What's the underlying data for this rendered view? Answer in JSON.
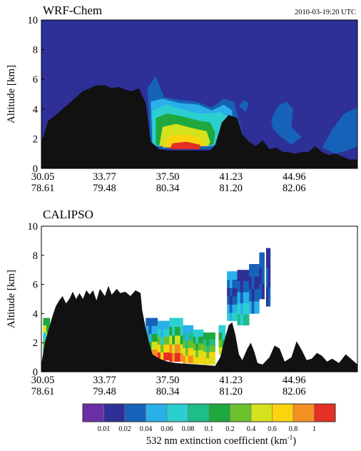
{
  "figure_label": "",
  "chart_data": [
    {
      "type": "heatmap",
      "title": "WRF-Chem",
      "timestamp": "2010-03-19:20 UTC",
      "ylabel": "Altitude [km]",
      "ylim": [
        0,
        10
      ],
      "yticks": [
        "0",
        "2",
        "4",
        "6",
        "8",
        "10"
      ],
      "xtick_labels": [
        {
          "lat": "30.05",
          "lon": "78.61"
        },
        {
          "lat": "33.77",
          "lon": "79.48"
        },
        {
          "lat": "37.50",
          "lon": "80.34"
        },
        {
          "lat": "41.23",
          "lon": "81.20"
        },
        {
          "lat": "44.96",
          "lon": "82.06"
        }
      ],
      "x_range": [
        30.05,
        48.69
      ],
      "background_level": 0.01,
      "terrain_color": "#111111",
      "terrain_km": [
        [
          30.05,
          1.7
        ],
        [
          30.45,
          3.2
        ],
        [
          30.9,
          3.6
        ],
        [
          31.3,
          4.0
        ],
        [
          31.7,
          4.4
        ],
        [
          32.1,
          4.8
        ],
        [
          32.5,
          5.2
        ],
        [
          32.9,
          5.4
        ],
        [
          33.3,
          5.6
        ],
        [
          33.8,
          5.6
        ],
        [
          34.2,
          5.4
        ],
        [
          34.6,
          5.5
        ],
        [
          35.0,
          5.3
        ],
        [
          35.4,
          5.2
        ],
        [
          35.8,
          5.4
        ],
        [
          36.2,
          4.4
        ],
        [
          36.5,
          1.8
        ],
        [
          37.0,
          1.3
        ],
        [
          37.5,
          1.2
        ],
        [
          38.0,
          1.2
        ],
        [
          38.5,
          1.2
        ],
        [
          39.0,
          1.2
        ],
        [
          39.5,
          1.2
        ],
        [
          40.0,
          1.2
        ],
        [
          40.3,
          1.6
        ],
        [
          40.7,
          3.1
        ],
        [
          41.1,
          3.6
        ],
        [
          41.6,
          3.4
        ],
        [
          41.9,
          2.3
        ],
        [
          42.3,
          1.8
        ],
        [
          42.7,
          1.5
        ],
        [
          43.1,
          1.9
        ],
        [
          43.5,
          1.3
        ],
        [
          43.9,
          1.4
        ],
        [
          44.3,
          1.1
        ],
        [
          44.6,
          1.1
        ],
        [
          45.0,
          1.0
        ],
        [
          45.4,
          1.1
        ],
        [
          45.8,
          1.1
        ],
        [
          46.2,
          1.5
        ],
        [
          46.6,
          1.1
        ],
        [
          47.0,
          0.9
        ],
        [
          47.4,
          1.0
        ],
        [
          47.8,
          0.8
        ],
        [
          48.2,
          0.6
        ],
        [
          48.69,
          0.6
        ]
      ],
      "plume_layers": [
        {
          "level": 0.02,
          "points": [
            [
              36.5,
              1.5
            ],
            [
              36.3,
              5.4
            ],
            [
              36.8,
              6.2
            ],
            [
              37.3,
              4.8
            ],
            [
              38.3,
              4.6
            ],
            [
              39.2,
              4.5
            ],
            [
              40.1,
              4.1
            ],
            [
              40.8,
              4.7
            ],
            [
              41.4,
              4.5
            ],
            [
              42.0,
              2.0
            ],
            [
              41.9,
              1.5
            ],
            [
              40.3,
              1.3
            ],
            [
              36.5,
              1.3
            ]
          ]
        },
        {
          "level": 0.04,
          "points": [
            [
              36.6,
              1.5
            ],
            [
              36.5,
              4.5
            ],
            [
              37.2,
              4.7
            ],
            [
              38.2,
              4.4
            ],
            [
              39.3,
              4.3
            ],
            [
              40.1,
              3.9
            ],
            [
              40.8,
              4.3
            ],
            [
              41.3,
              3.9
            ],
            [
              41.3,
              1.5
            ]
          ]
        },
        {
          "level": 0.06,
          "points": [
            [
              36.6,
              1.6
            ],
            [
              36.6,
              3.9
            ],
            [
              37.4,
              4.3
            ],
            [
              38.3,
              4.0
            ],
            [
              39.3,
              3.7
            ],
            [
              40.1,
              3.7
            ],
            [
              40.6,
              3.8
            ],
            [
              41.0,
              3.5
            ],
            [
              41.0,
              1.6
            ]
          ]
        },
        {
          "level": 0.1,
          "points": [
            [
              36.8,
              1.6
            ],
            [
              36.8,
              3.4
            ],
            [
              37.5,
              3.7
            ],
            [
              38.4,
              3.5
            ],
            [
              39.4,
              3.2
            ],
            [
              40.0,
              3.1
            ],
            [
              40.3,
              2.4
            ],
            [
              40.2,
              1.6
            ]
          ]
        },
        {
          "level": 0.4,
          "points": [
            [
              37.0,
              1.5
            ],
            [
              37.2,
              2.8
            ],
            [
              38.0,
              3.0
            ],
            [
              39.0,
              2.7
            ],
            [
              39.8,
              2.5
            ],
            [
              40.0,
              1.8
            ],
            [
              39.9,
              1.5
            ]
          ]
        },
        {
          "level": 0.6,
          "points": [
            [
              37.2,
              1.4
            ],
            [
              37.6,
              2.2
            ],
            [
              38.6,
              2.3
            ],
            [
              39.5,
              2.0
            ],
            [
              39.7,
              1.5
            ]
          ]
        },
        {
          "level": 1,
          "points": [
            [
              37.6,
              1.3
            ],
            [
              37.8,
              1.7
            ],
            [
              38.6,
              1.8
            ],
            [
              39.4,
              1.6
            ],
            [
              39.4,
              1.3
            ]
          ]
        }
      ],
      "secondary_patches": [
        {
          "level": 0.02,
          "points": [
            [
              43.6,
              3.3
            ],
            [
              44.0,
              4.2
            ],
            [
              44.5,
              4.5
            ],
            [
              44.9,
              4.0
            ],
            [
              44.8,
              2.8
            ],
            [
              45.4,
              2.1
            ],
            [
              44.8,
              1.6
            ],
            [
              44.1,
              2.2
            ],
            [
              43.7,
              2.7
            ]
          ]
        },
        {
          "level": 0.02,
          "points": [
            [
              46.6,
              1.4
            ],
            [
              47.2,
              2.6
            ],
            [
              47.9,
              3.7
            ],
            [
              48.69,
              4.1
            ],
            [
              48.69,
              1.5
            ],
            [
              48.1,
              1.2
            ],
            [
              47.4,
              1.0
            ]
          ]
        },
        {
          "level": 0.02,
          "points": [
            [
              41.7,
              4.2
            ],
            [
              42.0,
              4.6
            ],
            [
              42.3,
              4.4
            ],
            [
              42.1,
              3.8
            ]
          ]
        }
      ]
    },
    {
      "type": "heatmap",
      "title": "CALIPSO",
      "ylabel": "Altitude [km]",
      "ylim": [
        0,
        10
      ],
      "yticks": [
        "0",
        "2",
        "4",
        "6",
        "8",
        "10"
      ],
      "xtick_labels": [
        {
          "lat": "30.05",
          "lon": "78.61"
        },
        {
          "lat": "33.77",
          "lon": "79.48"
        },
        {
          "lat": "37.50",
          "lon": "80.34"
        },
        {
          "lat": "41.23",
          "lon": "81.20"
        },
        {
          "lat": "44.96",
          "lon": "82.06"
        }
      ],
      "x_range": [
        30.05,
        48.69
      ],
      "background_level": "none",
      "terrain_color": "#111111",
      "terrain_km": [
        [
          30.05,
          0.5
        ],
        [
          30.25,
          2.0
        ],
        [
          30.5,
          3.0
        ],
        [
          30.7,
          3.8
        ],
        [
          30.9,
          4.5
        ],
        [
          31.1,
          4.9
        ],
        [
          31.3,
          5.2
        ],
        [
          31.5,
          4.7
        ],
        [
          31.7,
          5.0
        ],
        [
          31.9,
          5.5
        ],
        [
          32.1,
          5.0
        ],
        [
          32.3,
          5.4
        ],
        [
          32.5,
          5.0
        ],
        [
          32.7,
          5.6
        ],
        [
          32.9,
          5.3
        ],
        [
          33.1,
          5.6
        ],
        [
          33.3,
          4.9
        ],
        [
          33.5,
          5.7
        ],
        [
          33.8,
          5.2
        ],
        [
          34.0,
          5.9
        ],
        [
          34.2,
          5.3
        ],
        [
          34.5,
          5.7
        ],
        [
          34.7,
          5.4
        ],
        [
          35.0,
          5.5
        ],
        [
          35.3,
          5.2
        ],
        [
          35.6,
          5.6
        ],
        [
          35.9,
          5.4
        ],
        [
          36.0,
          4.2
        ],
        [
          36.2,
          3.0
        ],
        [
          36.4,
          2.0
        ],
        [
          36.6,
          1.2
        ],
        [
          37.0,
          0.9
        ],
        [
          37.5,
          0.7
        ],
        [
          38.0,
          0.6
        ],
        [
          38.6,
          0.55
        ],
        [
          39.2,
          0.5
        ],
        [
          39.8,
          0.45
        ],
        [
          40.3,
          0.4
        ],
        [
          40.6,
          1.0
        ],
        [
          40.9,
          2.4
        ],
        [
          41.1,
          3.2
        ],
        [
          41.3,
          3.4
        ],
        [
          41.5,
          2.5
        ],
        [
          41.7,
          1.2
        ],
        [
          41.9,
          0.8
        ],
        [
          42.2,
          1.6
        ],
        [
          42.4,
          2.0
        ],
        [
          42.6,
          1.4
        ],
        [
          42.8,
          0.6
        ],
        [
          43.1,
          0.5
        ],
        [
          43.5,
          1.0
        ],
        [
          43.8,
          1.8
        ],
        [
          44.1,
          1.6
        ],
        [
          44.4,
          0.7
        ],
        [
          44.8,
          1.0
        ],
        [
          45.1,
          2.1
        ],
        [
          45.4,
          1.5
        ],
        [
          45.7,
          0.8
        ],
        [
          46.0,
          0.9
        ],
        [
          46.3,
          1.3
        ],
        [
          46.6,
          1.1
        ],
        [
          46.9,
          0.7
        ],
        [
          47.2,
          0.9
        ],
        [
          47.6,
          0.6
        ],
        [
          48.0,
          1.2
        ],
        [
          48.3,
          0.9
        ],
        [
          48.69,
          0.5
        ]
      ],
      "observed_bands": [
        {
          "x0": 30.15,
          "x1": 30.55,
          "y0": 1.2,
          "y1": 3.7,
          "levels": [
            0.08,
            0.2,
            0.06,
            0.4,
            0.1
          ]
        },
        {
          "x0": 36.2,
          "x1": 36.9,
          "y0": 1.0,
          "y1": 3.7,
          "levels": [
            0.8,
            0.4,
            0.1,
            0.04,
            0.02
          ]
        },
        {
          "x0": 36.9,
          "x1": 37.6,
          "y0": 0.8,
          "y1": 3.5,
          "levels": [
            1,
            0.6,
            0.2,
            0.06,
            0.04
          ]
        },
        {
          "x0": 37.6,
          "x1": 38.4,
          "y0": 0.7,
          "y1": 3.7,
          "levels": [
            1,
            0.8,
            0.4,
            0.1,
            0.06
          ]
        },
        {
          "x0": 38.4,
          "x1": 39.0,
          "y0": 0.6,
          "y1": 3.2,
          "levels": [
            0.8,
            0.6,
            0.2,
            0.08,
            0.04
          ]
        },
        {
          "x0": 39.0,
          "x1": 39.6,
          "y0": 0.55,
          "y1": 2.9,
          "levels": [
            0.6,
            0.4,
            0.2,
            0.1,
            0.06
          ]
        },
        {
          "x0": 39.6,
          "x1": 40.3,
          "y0": 0.5,
          "y1": 2.7,
          "levels": [
            0.4,
            0.6,
            0.2,
            0.08,
            0.1
          ]
        },
        {
          "x0": 40.5,
          "x1": 40.9,
          "y0": 1.2,
          "y1": 3.2,
          "levels": [
            0.4,
            0.2,
            0.1,
            0.06
          ]
        },
        {
          "x0": 41.0,
          "x1": 41.6,
          "y0": 3.5,
          "y1": 6.9,
          "levels": [
            0.06,
            0.04,
            0.02,
            0.01,
            0.02,
            0.04
          ]
        },
        {
          "x0": 41.6,
          "x1": 42.3,
          "y0": 3.2,
          "y1": 7.0,
          "levels": [
            0.08,
            0.06,
            0.04,
            0.02,
            0.01
          ]
        },
        {
          "x0": 42.3,
          "x1": 42.9,
          "y0": 4.0,
          "y1": 7.4,
          "levels": [
            0.04,
            0.02,
            0.01,
            0.02
          ]
        },
        {
          "x0": 42.9,
          "x1": 43.2,
          "y0": 5.0,
          "y1": 8.2,
          "levels": [
            0.02,
            0.01,
            0.02
          ]
        },
        {
          "x0": 43.3,
          "x1": 43.55,
          "y0": 4.5,
          "y1": 8.5,
          "levels": [
            0.01,
            0.02,
            0.01
          ]
        }
      ]
    }
  ],
  "colorbar": {
    "title": "532 nm  extinction  coefficient (km",
    "title_sup": "-1",
    "title_end": ")",
    "levels": [
      "0.01",
      "0.02",
      "0.04",
      "0.06",
      "0.08",
      "0.1",
      "0.2",
      "0.4",
      "0.6",
      "0.8",
      "1"
    ],
    "colors": [
      "#6A2FA5",
      "#2E2F97",
      "#1662B8",
      "#2AB0E8",
      "#2CCFD0",
      "#1FBD8A",
      "#1EA83E",
      "#6CC12C",
      "#D4E21E",
      "#FBD40E",
      "#F39021",
      "#E52F24"
    ]
  }
}
